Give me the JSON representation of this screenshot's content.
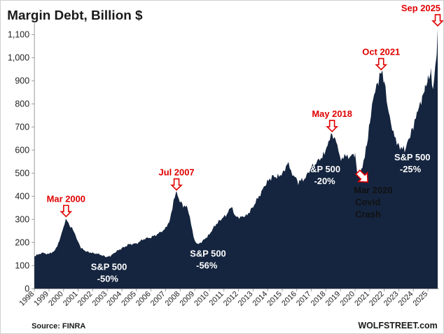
{
  "chart_data": {
    "type": "area",
    "title": "Margin Debt, Billion $",
    "ylabel": "",
    "xlabel": "",
    "ylim": [
      0,
      1150
    ],
    "yticks": [
      "0",
      "100",
      "200",
      "300",
      "400",
      "500",
      "600",
      "700",
      "800",
      "900",
      "1,000",
      "1,100"
    ],
    "ytick_values": [
      0,
      100,
      200,
      300,
      400,
      500,
      600,
      700,
      800,
      900,
      1000,
      1100
    ],
    "xlim": [
      1998.0,
      2025.75
    ],
    "xticks": [
      "1998",
      "1999",
      "2000",
      "2001",
      "2002",
      "2003",
      "2004",
      "2005",
      "2006",
      "2007",
      "2008",
      "2009",
      "2010",
      "2011",
      "2012",
      "2013",
      "2014",
      "2015",
      "2016",
      "2017",
      "2018",
      "2019",
      "2020",
      "2021",
      "2022",
      "2023",
      "2024",
      "2025"
    ],
    "xtick_values": [
      1998,
      1999,
      2000,
      2001,
      2002,
      2003,
      2004,
      2005,
      2006,
      2007,
      2008,
      2009,
      2010,
      2011,
      2012,
      2013,
      2014,
      2015,
      2016,
      2017,
      2018,
      2019,
      2020,
      2021,
      2022,
      2023,
      2024,
      2025
    ],
    "series": [
      {
        "name": "Margin Debt",
        "color": "#15253f",
        "points": [
          [
            1998.0,
            140
          ],
          [
            1998.5,
            155
          ],
          [
            1999.0,
            150
          ],
          [
            1999.4,
            165
          ],
          [
            1999.7,
            205
          ],
          [
            1999.9,
            250
          ],
          [
            2000.17,
            300
          ],
          [
            2000.4,
            275
          ],
          [
            2000.7,
            250
          ],
          [
            2000.9,
            215
          ],
          [
            2001.2,
            175
          ],
          [
            2001.6,
            160
          ],
          [
            2002.0,
            155
          ],
          [
            2002.5,
            148
          ],
          [
            2002.9,
            138
          ],
          [
            2003.2,
            140
          ],
          [
            2003.6,
            160
          ],
          [
            2004.0,
            175
          ],
          [
            2004.5,
            192
          ],
          [
            2005.0,
            195
          ],
          [
            2005.5,
            215
          ],
          [
            2006.0,
            222
          ],
          [
            2006.5,
            238
          ],
          [
            2007.0,
            260
          ],
          [
            2007.3,
            300
          ],
          [
            2007.55,
            380
          ],
          [
            2007.75,
            415
          ],
          [
            2007.9,
            390
          ],
          [
            2008.2,
            360
          ],
          [
            2008.5,
            350
          ],
          [
            2008.75,
            280
          ],
          [
            2009.0,
            205
          ],
          [
            2009.2,
            190
          ],
          [
            2009.6,
            210
          ],
          [
            2010.0,
            235
          ],
          [
            2010.4,
            275
          ],
          [
            2010.8,
            300
          ],
          [
            2011.2,
            320
          ],
          [
            2011.5,
            355
          ],
          [
            2011.8,
            310
          ],
          [
            2012.2,
            310
          ],
          [
            2012.6,
            320
          ],
          [
            2013.0,
            355
          ],
          [
            2013.5,
            410
          ],
          [
            2013.9,
            455
          ],
          [
            2014.3,
            485
          ],
          [
            2014.7,
            485
          ],
          [
            2015.1,
            505
          ],
          [
            2015.35,
            545
          ],
          [
            2015.7,
            500
          ],
          [
            2016.1,
            460
          ],
          [
            2016.6,
            480
          ],
          [
            2017.0,
            525
          ],
          [
            2017.5,
            555
          ],
          [
            2017.9,
            585
          ],
          [
            2018.1,
            630
          ],
          [
            2018.42,
            668
          ],
          [
            2018.7,
            645
          ],
          [
            2018.95,
            565
          ],
          [
            2019.3,
            570
          ],
          [
            2019.8,
            575
          ],
          [
            2020.0,
            580
          ],
          [
            2020.2,
            480
          ],
          [
            2020.5,
            530
          ],
          [
            2020.8,
            620
          ],
          [
            2021.0,
            720
          ],
          [
            2021.3,
            840
          ],
          [
            2021.6,
            895
          ],
          [
            2021.79,
            936
          ],
          [
            2022.0,
            895
          ],
          [
            2022.3,
            760
          ],
          [
            2022.7,
            660
          ],
          [
            2023.0,
            620
          ],
          [
            2023.4,
            600
          ],
          [
            2023.7,
            650
          ],
          [
            2024.0,
            700
          ],
          [
            2024.3,
            765
          ],
          [
            2024.6,
            820
          ],
          [
            2024.8,
            860
          ],
          [
            2025.0,
            900
          ],
          [
            2025.2,
            935
          ],
          [
            2025.35,
            860
          ],
          [
            2025.5,
            960
          ],
          [
            2025.6,
            1020
          ],
          [
            2025.67,
            1126
          ]
        ]
      }
    ],
    "peaks": [
      {
        "label": "Mar 2000",
        "x": 2000.17,
        "y": 300
      },
      {
        "label": "Jul 2007",
        "x": 2007.75,
        "y": 415
      },
      {
        "label": "May 2018",
        "x": 2018.42,
        "y": 668
      },
      {
        "label": "Oct 2021",
        "x": 2021.79,
        "y": 936
      },
      {
        "label": "Sep 2025",
        "x": 2025.67,
        "y": 1126
      }
    ],
    "drawdowns": [
      {
        "line1": "S&P 500",
        "line2": "-50%"
      },
      {
        "line1": "S&P 500",
        "line2": "-56%"
      },
      {
        "line1": "S&P 500",
        "line2": "-20%"
      },
      {
        "line1": "S&P 500",
        "line2": "-25%"
      }
    ],
    "covid": {
      "line1": "Mar 2020",
      "line2": "Covid",
      "line3": "Crash",
      "x": 2020.2,
      "y": 480
    }
  },
  "footer": {
    "source": "Source: FINRA",
    "brand": "WOLFSTREET.com"
  },
  "colors": {
    "area": "#15253f",
    "peak": "#e00000"
  }
}
